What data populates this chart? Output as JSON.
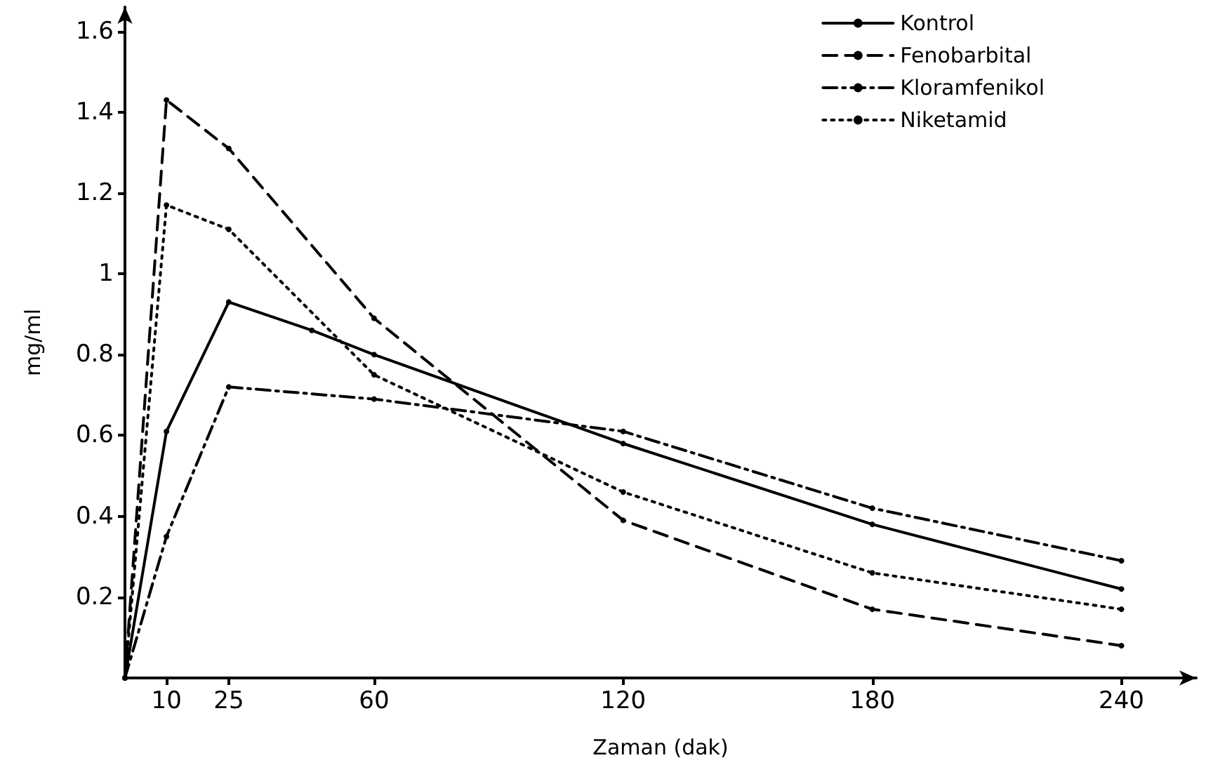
{
  "chart_data": {
    "type": "line",
    "xlabel": "Zaman (dak)",
    "ylabel": "mg/ml",
    "x": [
      0,
      10,
      25,
      60,
      120,
      180,
      240
    ],
    "series": [
      {
        "name": "Kontrol",
        "color": "#000000",
        "line_style": "solid",
        "x": [
          0,
          10,
          25,
          45,
          60,
          120,
          180,
          240
        ],
        "values": [
          0,
          0.61,
          0.93,
          0.86,
          0.8,
          0.58,
          0.38,
          0.22
        ]
      },
      {
        "name": "Fenobarbital",
        "color": "#000000",
        "line_style": "dashed",
        "values": [
          0,
          1.43,
          1.31,
          0.89,
          0.39,
          0.17,
          0.08
        ]
      },
      {
        "name": "Kloramfenikol",
        "color": "#000000",
        "line_style": "dashdot",
        "values": [
          0,
          0.35,
          0.72,
          0.69,
          0.61,
          0.42,
          0.29
        ]
      },
      {
        "name": "Niketamid",
        "color": "#000000",
        "line_style": "dotted",
        "values": [
          0,
          1.17,
          1.11,
          0.75,
          0.46,
          0.26,
          0.17
        ]
      }
    ],
    "xlim": [
      0,
      258
    ],
    "xticks": [
      10,
      25,
      60,
      120,
      180,
      240
    ],
    "ylim": [
      0,
      1.66
    ],
    "yticks": [
      0.2,
      0.4,
      0.6,
      0.8,
      1,
      1.2,
      1.4,
      1.6
    ],
    "grid": false,
    "legend": "top right",
    "marker": "circle"
  }
}
